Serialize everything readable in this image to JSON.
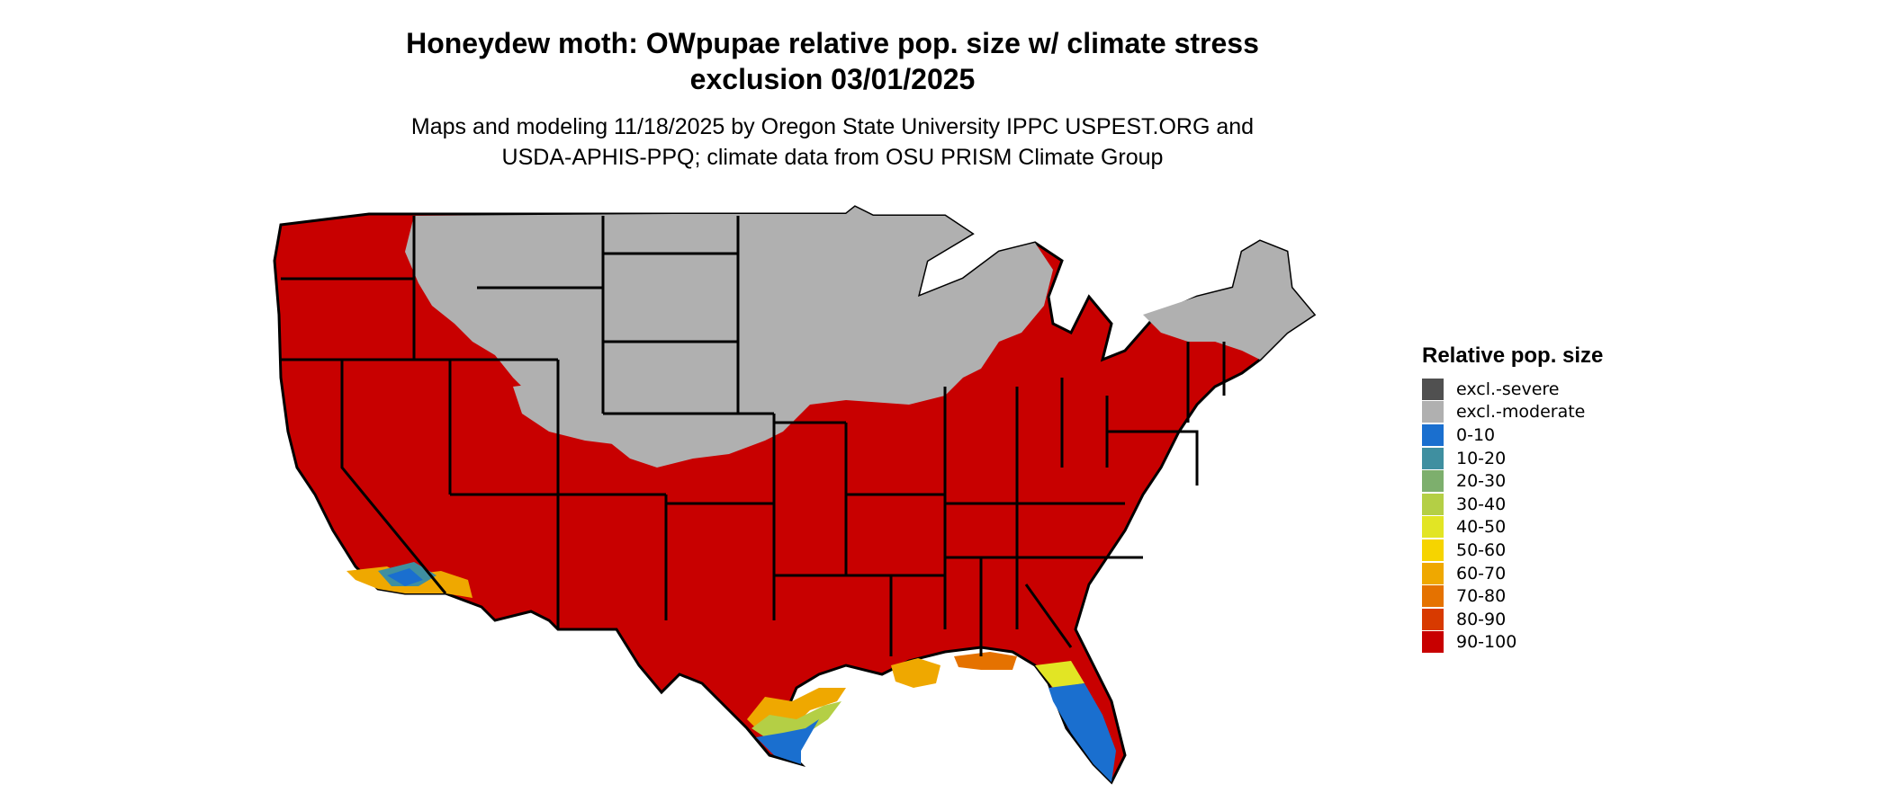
{
  "title_line1": "Honeydew moth: OWpupae relative pop. size w/ climate stress",
  "title_line2": "exclusion 03/01/2025",
  "subtitle_line1": "Maps and modeling 11/18/2025 by Oregon State University IPPC USPEST.ORG and",
  "subtitle_line2": "USDA-APHIS-PPQ; climate data from OSU PRISM Climate Group",
  "legend": {
    "title": "Relative pop. size",
    "items": [
      {
        "label": "excl.-severe",
        "color": "#505050"
      },
      {
        "label": "excl.-moderate",
        "color": "#b0b0b0"
      },
      {
        "label": "0-10",
        "color": "#1a6fcf"
      },
      {
        "label": "10-20",
        "color": "#3f8fa0"
      },
      {
        "label": "20-30",
        "color": "#7daf6d"
      },
      {
        "label": "30-40",
        "color": "#b4cf45"
      },
      {
        "label": "40-50",
        "color": "#e2e524"
      },
      {
        "label": "50-60",
        "color": "#f6d400"
      },
      {
        "label": "60-70",
        "color": "#efa800"
      },
      {
        "label": "70-80",
        "color": "#e57200"
      },
      {
        "label": "80-90",
        "color": "#d83a00"
      },
      {
        "label": "90-100",
        "color": "#c80000"
      }
    ]
  },
  "map_colors": {
    "excluded": "#b0b0b0",
    "high": "#c80000",
    "low": "#1a6fcf",
    "mid_orange": "#efa800",
    "mid_yellow": "#b4cf45",
    "mid_teal": "#3f8fa0",
    "state_lines": "#000000"
  }
}
